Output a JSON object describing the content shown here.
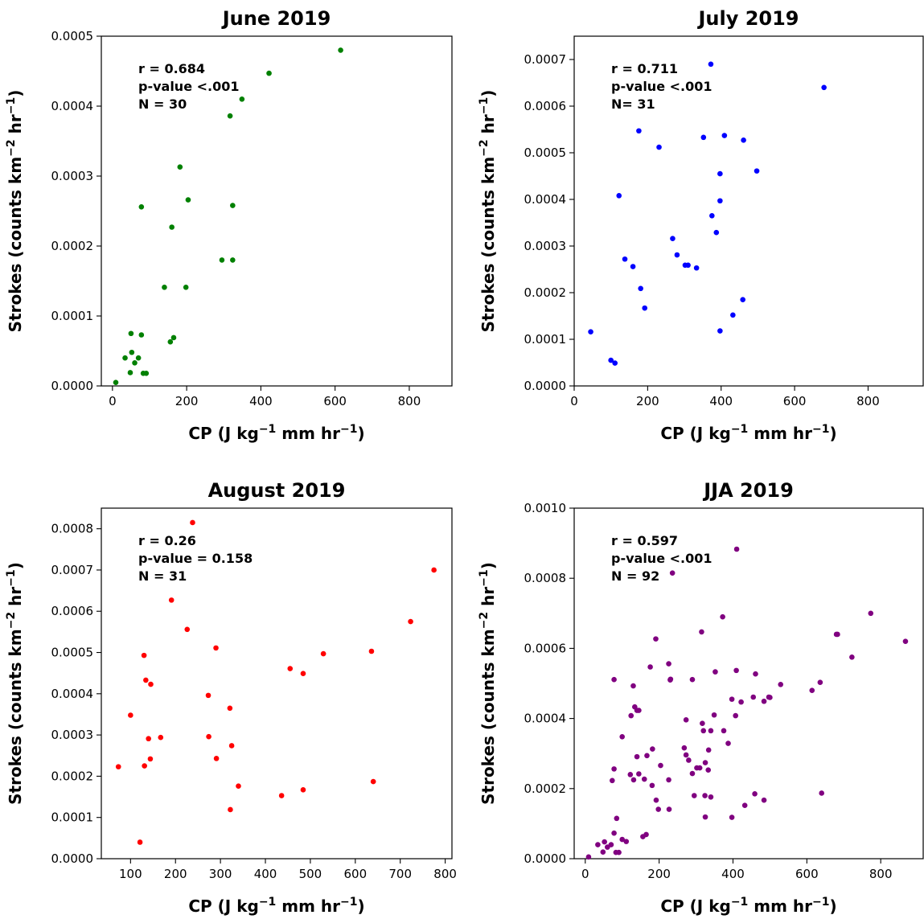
{
  "chart_data": [
    {
      "type": "scatter",
      "title": "June 2019",
      "xlabel": "CP (J kg⁻¹ mm hr⁻¹)",
      "ylabel": "Strokes (counts km⁻² hr⁻¹)",
      "xlim": [
        -30,
        915
      ],
      "ylim": [
        0,
        0.0005
      ],
      "xticks": [
        0,
        200,
        400,
        600,
        800
      ],
      "xtick_labels": [
        "0",
        "200",
        "400",
        "600",
        "800"
      ],
      "yticks": [
        0,
        0.0001,
        0.0002,
        0.0003,
        0.0004,
        0.0005
      ],
      "ytick_labels": [
        "0.0000",
        "0.0001",
        "0.0002",
        "0.0003",
        "0.0004",
        "0.0005"
      ],
      "color": "#008000",
      "annotation": [
        "r = 0.684",
        "p-value <.001",
        "N = 30"
      ],
      "x": [
        615,
        422,
        349,
        317,
        182,
        204,
        324,
        78,
        160,
        295,
        324,
        140,
        198,
        50,
        78,
        165,
        156,
        52,
        34,
        60,
        48,
        83,
        91,
        9,
        70
      ],
      "y": [
        0.00048,
        0.000447,
        0.00041,
        0.000386,
        0.000313,
        0.000266,
        0.000258,
        0.000256,
        0.000227,
        0.00018,
        0.00018,
        0.000141,
        0.000141,
        7.5e-05,
        7.3e-05,
        6.9e-05,
        6.3e-05,
        4.8e-05,
        4e-05,
        3.3e-05,
        1.9e-05,
        1.8e-05,
        1.8e-05,
        5e-06,
        4e-05
      ]
    },
    {
      "type": "scatter",
      "title": "July 2019",
      "xlabel": "CP (J kg⁻¹ mm hr⁻¹)",
      "ylabel": "Strokes (counts km⁻² hr⁻¹)",
      "xlim": [
        0,
        950
      ],
      "ylim": [
        0,
        0.00075
      ],
      "xticks": [
        0,
        200,
        400,
        600,
        800
      ],
      "xtick_labels": [
        "0",
        "200",
        "400",
        "600",
        "800"
      ],
      "yticks": [
        0,
        0.0001,
        0.0002,
        0.0003,
        0.0004,
        0.0005,
        0.0006,
        0.0007
      ],
      "ytick_labels": [
        "0.0000",
        "0.0001",
        "0.0002",
        "0.0003",
        "0.0004",
        "0.0005",
        "0.0006",
        "0.0007"
      ],
      "color": "#0000ff",
      "annotation": [
        "r = 0.711",
        "p-value <.001",
        "N= 31"
      ],
      "x": [
        372,
        680,
        176,
        409,
        352,
        461,
        231,
        497,
        397,
        122,
        397,
        375,
        387,
        268,
        280,
        302,
        310,
        333,
        138,
        160,
        181,
        459,
        192,
        432,
        45,
        397,
        100,
        111
      ],
      "y": [
        0.00069,
        0.00064,
        0.000547,
        0.000537,
        0.000533,
        0.000527,
        0.000512,
        0.000461,
        0.000455,
        0.000408,
        0.000397,
        0.000365,
        0.000329,
        0.000316,
        0.000281,
        0.000259,
        0.000259,
        0.000253,
        0.000272,
        0.000256,
        0.000209,
        0.000185,
        0.000167,
        0.000152,
        0.000116,
        0.000118,
        5.5e-05,
        4.9e-05
      ]
    },
    {
      "type": "scatter",
      "title": "August 2019",
      "xlabel": "CP (J kg⁻¹ mm hr⁻¹)",
      "ylabel": "Strokes (counts km⁻² hr⁻¹)",
      "xlim": [
        35,
        815
      ],
      "ylim": [
        0,
        0.00085
      ],
      "xticks": [
        100,
        200,
        300,
        400,
        500,
        600,
        700,
        800
      ],
      "xtick_labels": [
        "100",
        "200",
        "300",
        "400",
        "500",
        "600",
        "700",
        "800"
      ],
      "yticks": [
        0,
        0.0001,
        0.0002,
        0.0003,
        0.0004,
        0.0005,
        0.0006,
        0.0007,
        0.0008
      ],
      "ytick_labels": [
        "0.0000",
        "0.0001",
        "0.0002",
        "0.0003",
        "0.0004",
        "0.0005",
        "0.0006",
        "0.0007",
        "0.0008"
      ],
      "color": "#ff0000",
      "annotation": [
        "r = 0.26",
        "p-value = 0.158",
        "N = 31"
      ],
      "x": [
        238,
        775,
        191,
        723,
        226,
        290,
        636,
        529,
        130,
        455,
        484,
        134,
        145,
        273,
        100,
        321,
        140,
        167,
        274,
        325,
        144,
        291,
        73,
        131,
        640,
        340,
        484,
        436,
        322,
        121
      ],
      "y": [
        0.000815,
        0.0007,
        0.000627,
        0.000575,
        0.000556,
        0.000511,
        0.000503,
        0.000497,
        0.000493,
        0.000461,
        0.000449,
        0.000433,
        0.000423,
        0.000396,
        0.000348,
        0.000365,
        0.000291,
        0.000294,
        0.000296,
        0.000274,
        0.000242,
        0.000243,
        0.000223,
        0.000225,
        0.000187,
        0.000176,
        0.000167,
        0.000153,
        0.000119,
        4e-05
      ]
    },
    {
      "type": "scatter",
      "title": "JJA 2019",
      "xlabel": "CP (J kg⁻¹ mm hr⁻¹)",
      "ylabel": "Strokes (counts km⁻² hr⁻¹)",
      "xlim": [
        -30,
        915
      ],
      "ylim": [
        0,
        0.001
      ],
      "xticks": [
        0,
        200,
        400,
        600,
        800
      ],
      "xtick_labels": [
        "0",
        "200",
        "400",
        "600",
        "800"
      ],
      "yticks": [
        0,
        0.0002,
        0.0004,
        0.0006,
        0.0008,
        0.001
      ],
      "ytick_labels": [
        "0.0000",
        "0.0002",
        "0.0004",
        "0.0006",
        "0.0008",
        "0.0010"
      ],
      "color": "#800080",
      "annotation": [
        "r = 0.597",
        "p-value <.001",
        "N = 92"
      ],
      "x": [
        410,
        236,
        773,
        372,
        680,
        867,
        683,
        722,
        315,
        191,
        176,
        226,
        230,
        352,
        409,
        461,
        231,
        290,
        636,
        529,
        497,
        614,
        455,
        484,
        78,
        130,
        140,
        134,
        145,
        500,
        397,
        273,
        422,
        349,
        317,
        407,
        124,
        100,
        182,
        204,
        340,
        375,
        320,
        387,
        334,
        268,
        280,
        302,
        273,
        167,
        310,
        333,
        325,
        140,
        295,
        324,
        160,
        78,
        145,
        290,
        122,
        226,
        181,
        192,
        227,
        73,
        131,
        640,
        459,
        340,
        484,
        432,
        325,
        198,
        397,
        78,
        165,
        156,
        52,
        34,
        60,
        91,
        83,
        48,
        100,
        111,
        9,
        70,
        85
      ],
      "y": [
        0.000883,
        0.000815,
        0.0007,
        0.00069,
        0.00064,
        0.00062,
        0.00064,
        0.000575,
        0.000647,
        0.000627,
        0.000547,
        0.000556,
        0.00051,
        0.000533,
        0.000537,
        0.000527,
        0.000512,
        0.000511,
        0.000503,
        0.000497,
        0.000461,
        0.00048,
        0.000461,
        0.000449,
        0.000511,
        0.000493,
        0.000423,
        0.000433,
        0.000423,
        0.00046,
        0.000455,
        0.000396,
        0.000447,
        0.00041,
        0.000386,
        0.000408,
        0.000408,
        0.000348,
        0.000313,
        0.000266,
        0.000365,
        0.000365,
        0.000365,
        0.000329,
        0.00031,
        0.000316,
        0.000281,
        0.000259,
        0.000296,
        0.000294,
        0.000259,
        0.000253,
        0.000274,
        0.000291,
        0.00018,
        0.00018,
        0.000227,
        0.000256,
        0.000242,
        0.000243,
        0.00024,
        0.000225,
        0.000209,
        0.000167,
        0.000141,
        0.000223,
        0.000225,
        0.000187,
        0.000185,
        0.000176,
        0.000167,
        0.000152,
        0.000119,
        0.000141,
        0.000118,
        7.3e-05,
        6.9e-05,
        6.3e-05,
        4.8e-05,
        4e-05,
        3.3e-05,
        1.8e-05,
        1.8e-05,
        1.9e-05,
        5.5e-05,
        4.9e-05,
        5e-06,
        4e-05,
        0.000115
      ]
    }
  ]
}
